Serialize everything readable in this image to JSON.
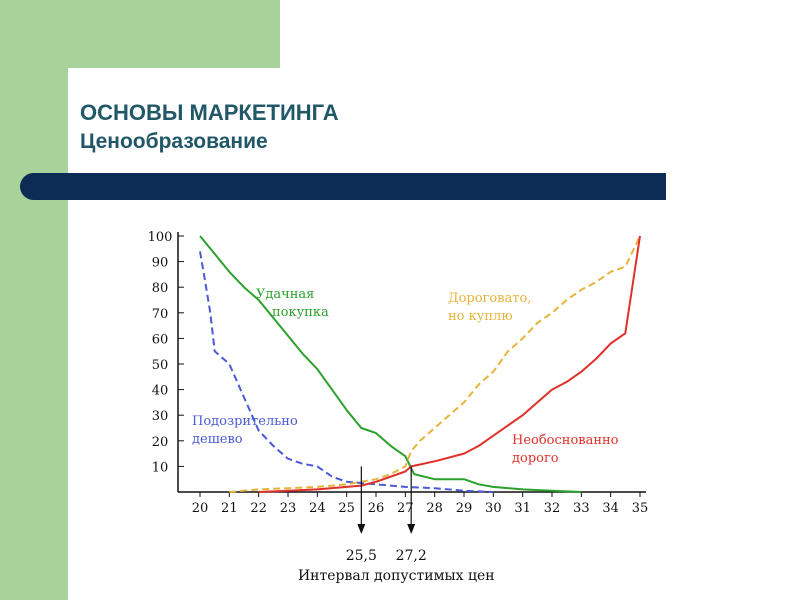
{
  "slide": {
    "title": "ОСНОВЫ МАРКЕТИНГА",
    "subtitle": "Ценообразование"
  },
  "colors": {
    "green_bg": "#a7d39a",
    "bar": "#0d2c55",
    "title": "#215868"
  },
  "chart_data": {
    "type": "line",
    "title": "",
    "xlabel": "Интервал допустимых цен",
    "ylabel": "",
    "xlim": [
      20,
      35
    ],
    "ylim": [
      0,
      100
    ],
    "x_ticks": [
      "20",
      "21",
      "22",
      "23",
      "24",
      "25",
      "26",
      "27",
      "28",
      "29",
      "30",
      "31",
      "32",
      "33",
      "34",
      "35"
    ],
    "y_ticks": [
      "100",
      "90",
      "80",
      "70",
      "60",
      "50",
      "40",
      "30",
      "20",
      "10"
    ],
    "grid": false,
    "series": [
      {
        "name": "Удачная покупка",
        "color": "#2ca02c",
        "style": "solid",
        "label_lines": [
          "Удачная",
          "покупка"
        ],
        "points": [
          [
            20,
            100
          ],
          [
            20.5,
            93
          ],
          [
            21,
            86
          ],
          [
            21.5,
            80
          ],
          [
            22,
            75
          ],
          [
            22.5,
            68
          ],
          [
            23,
            61
          ],
          [
            23.5,
            54
          ],
          [
            24,
            48
          ],
          [
            24.5,
            40
          ],
          [
            25,
            32
          ],
          [
            25.5,
            25
          ],
          [
            26,
            23
          ],
          [
            26.5,
            18
          ],
          [
            27,
            14
          ],
          [
            27.3,
            7
          ],
          [
            28,
            5
          ],
          [
            29,
            5
          ],
          [
            29.5,
            3
          ],
          [
            30,
            2
          ],
          [
            31,
            1
          ],
          [
            32,
            0.5
          ],
          [
            33,
            0
          ]
        ]
      },
      {
        "name": "Подозрительно дешево",
        "color": "#4a5ad6",
        "style": "dashed",
        "label_lines": [
          "Подозрительно",
          "дешево"
        ],
        "points": [
          [
            20,
            94
          ],
          [
            20.15,
            84
          ],
          [
            20.35,
            70
          ],
          [
            20.5,
            55
          ],
          [
            21,
            50
          ],
          [
            21.5,
            37
          ],
          [
            22,
            24
          ],
          [
            22.5,
            18
          ],
          [
            23,
            13
          ],
          [
            23.5,
            11
          ],
          [
            24,
            10
          ],
          [
            24.5,
            6
          ],
          [
            25,
            4
          ],
          [
            25.5,
            3.5
          ],
          [
            26,
            3
          ],
          [
            26.5,
            2.5
          ],
          [
            27,
            2
          ],
          [
            28,
            1.5
          ],
          [
            29,
            0.5
          ],
          [
            30,
            0
          ]
        ]
      },
      {
        "name": "Дороговато, но куплю",
        "color": "#e6b43c",
        "style": "dashed",
        "label_lines": [
          "Дороговато,",
          "но куплю"
        ],
        "points": [
          [
            21,
            0
          ],
          [
            22,
            1
          ],
          [
            23,
            1.5
          ],
          [
            24,
            2
          ],
          [
            25,
            3
          ],
          [
            25.5,
            4
          ],
          [
            26,
            5
          ],
          [
            26.5,
            7
          ],
          [
            27,
            10
          ],
          [
            27.2,
            16
          ],
          [
            27.5,
            20
          ],
          [
            28,
            25
          ],
          [
            28.5,
            30
          ],
          [
            29,
            35
          ],
          [
            29.5,
            42
          ],
          [
            30,
            47
          ],
          [
            30.5,
            55
          ],
          [
            31,
            60
          ],
          [
            31.5,
            66
          ],
          [
            32,
            70
          ],
          [
            32.5,
            75
          ],
          [
            33,
            79
          ],
          [
            33.5,
            82
          ],
          [
            34,
            86
          ],
          [
            34.5,
            88
          ],
          [
            35,
            100
          ]
        ]
      },
      {
        "name": "Необоснованно дорого",
        "color": "#e0302a",
        "style": "solid",
        "label_lines": [
          "Необоснованно",
          "дорого"
        ],
        "points": [
          [
            22,
            0
          ],
          [
            23,
            0.5
          ],
          [
            24,
            1
          ],
          [
            25,
            2
          ],
          [
            25.5,
            2.5
          ],
          [
            26,
            4
          ],
          [
            27,
            8
          ],
          [
            27.2,
            10
          ],
          [
            28,
            12
          ],
          [
            29,
            15
          ],
          [
            29.5,
            18
          ],
          [
            30,
            22
          ],
          [
            30.5,
            26
          ],
          [
            31,
            30
          ],
          [
            31.5,
            35
          ],
          [
            32,
            40
          ],
          [
            32.5,
            43
          ],
          [
            33,
            47
          ],
          [
            33.5,
            52
          ],
          [
            34,
            58
          ],
          [
            34.5,
            62
          ],
          [
            35,
            100
          ]
        ]
      }
    ],
    "markers": [
      {
        "x": 25.5,
        "label": "25,5"
      },
      {
        "x": 27.2,
        "label": "27,2"
      }
    ]
  }
}
